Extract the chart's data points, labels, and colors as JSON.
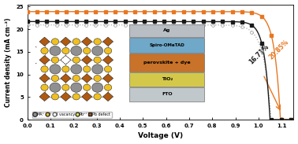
{
  "xlabel": "Voltage (V)",
  "ylabel": "Current density (mA cm⁻²)",
  "xlim": [
    0.0,
    1.15
  ],
  "ylim": [
    0.0,
    25.5
  ],
  "xticks": [
    0.0,
    0.1,
    0.2,
    0.3,
    0.4,
    0.5,
    0.6,
    0.7,
    0.8,
    0.9,
    1.0,
    1.1
  ],
  "yticks": [
    0,
    5,
    10,
    15,
    20,
    25
  ],
  "bg_color": "#ffffff",
  "curve_orange_Jsc": 23.9,
  "curve_black_Jsc": 21.7,
  "curve_gray_Jsc": 20.95,
  "curve_orange_Voc": 1.095,
  "curve_black_Voc": 1.05,
  "curve_gray_Voc": 1.055,
  "curve_orange_n": 0.026,
  "curve_black_n": 0.024,
  "curve_gray_n": 0.032,
  "curve_orange_color": "#E87722",
  "curve_black_color": "#1a1a1a",
  "curve_gray_color": "#aaaaaa",
  "annotation_orange": "20.85%",
  "annotation_black": "16.71%",
  "legend_items": [
    "MA⁺",
    "I⁻",
    "I vacancy",
    "Pb²⁺",
    "Pb defect"
  ],
  "layer_labels": [
    "Ag",
    "Spiro-OMeTAD",
    "perovskite + dye",
    "TiO₂",
    "FTO"
  ],
  "layer_colors": [
    "#b8bec4",
    "#6fa8c8",
    "#c8722a",
    "#d4c84a",
    "#c0c8cc"
  ]
}
